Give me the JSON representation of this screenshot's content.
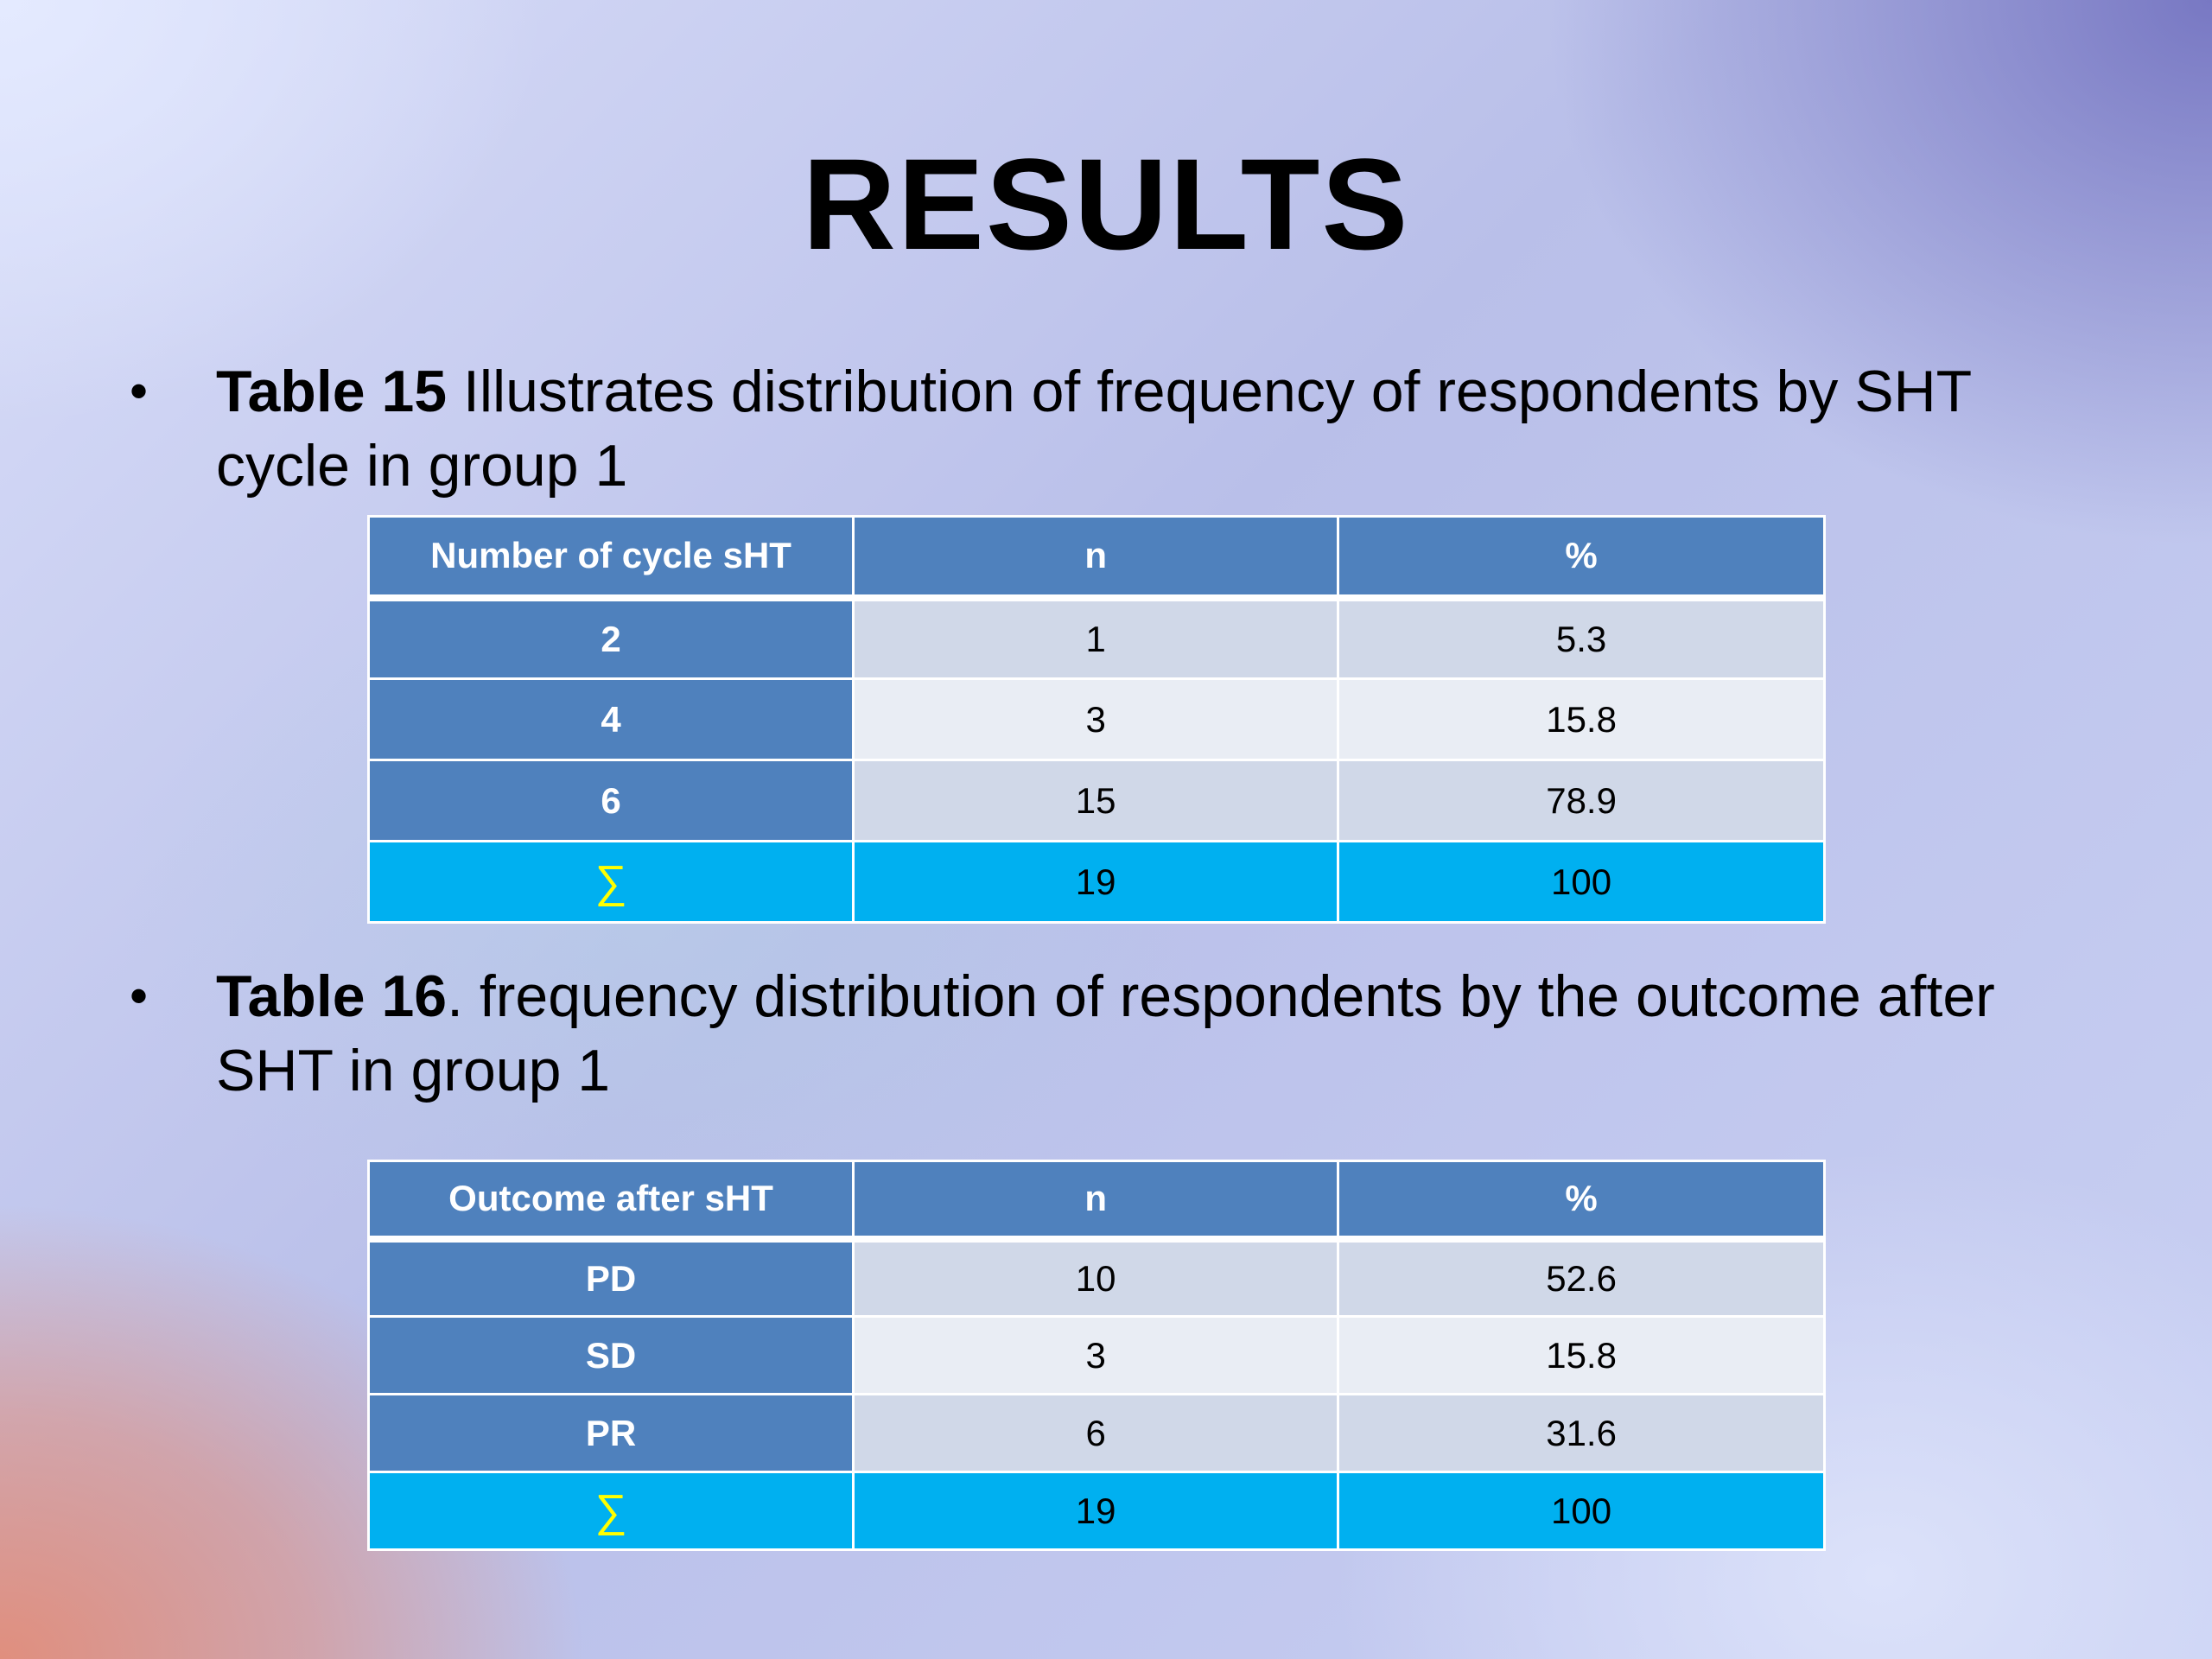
{
  "slide": {
    "title": "RESULTS"
  },
  "bullet1": {
    "bold": "Table 15",
    "text": " Illustrates distribution of frequency of respondents by SHT cycle in group 1"
  },
  "table15": {
    "headers": [
      "Number of cycle  sHT",
      "n",
      "%"
    ],
    "rows": [
      {
        "label": "2",
        "n": "1",
        "pct": "5.3"
      },
      {
        "label": "4",
        "n": "3",
        "pct": "15.8"
      },
      {
        "label": "6",
        "n": "15",
        "pct": "78.9"
      }
    ],
    "total": {
      "label": "∑",
      "n": "19",
      "pct": "100"
    }
  },
  "bullet2": {
    "bold": "Table 16",
    "text": ". frequency distribution of respondents by the outcome after SHT in group 1"
  },
  "table16": {
    "headers": [
      "Outcome after sHT",
      "n",
      "%"
    ],
    "rows": [
      {
        "label": "PD",
        "n": "10",
        "pct": "52.6"
      },
      {
        "label": "SD",
        "n": "3",
        "pct": "15.8"
      },
      {
        "label": "PR",
        "n": "6",
        "pct": "31.6"
      }
    ],
    "total": {
      "label": "∑",
      "n": "19",
      "pct": "100"
    }
  },
  "colors": {
    "header": "#4f81bd",
    "row_odd": "#d0d8e8",
    "row_even": "#e9edf4",
    "total": "#00b0f0",
    "sigma": "#ffff00"
  }
}
